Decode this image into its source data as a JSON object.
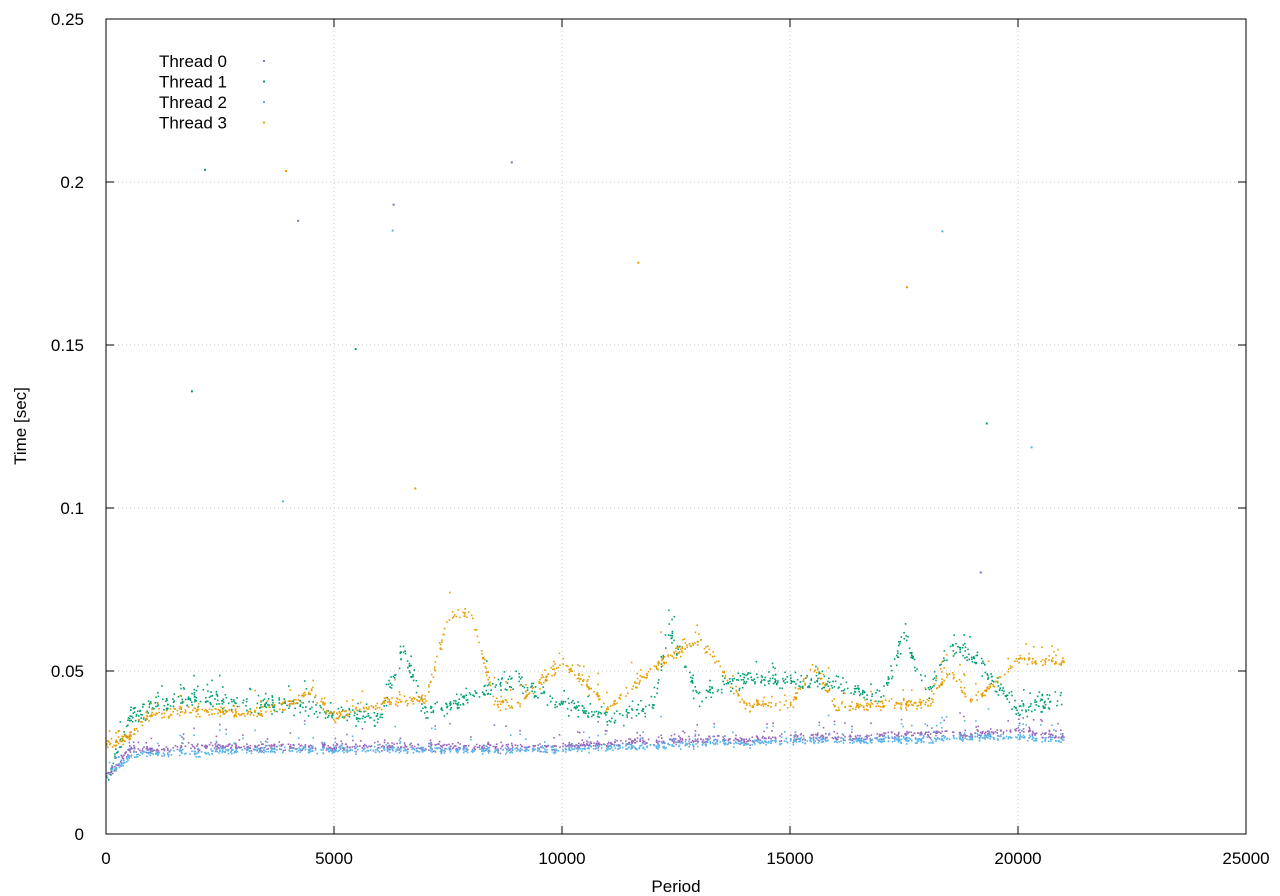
{
  "chart_data": {
    "type": "scatter",
    "title": "",
    "xlabel": "Period",
    "ylabel": "Time [sec]",
    "xlim": [
      0,
      25000
    ],
    "ylim": [
      0,
      0.25
    ],
    "x_ticks": [
      "0",
      "5000",
      "10000",
      "15000",
      "20000",
      "25000"
    ],
    "y_ticks": [
      "0",
      "0.05",
      "0.1",
      "0.15",
      "0.2",
      "0.25"
    ],
    "grid": true,
    "legend_position": "top-left",
    "series": [
      {
        "name": "Thread 0",
        "color": "#9467bd",
        "x": [
          0,
          500,
          1000,
          2000,
          3000,
          4000,
          5000,
          6000,
          7000,
          8000,
          9000,
          10000,
          11000,
          12000,
          13000,
          14000,
          15000,
          16000,
          17000,
          18000,
          19000,
          20000,
          21000
        ],
        "y": [
          0.018,
          0.026,
          0.026,
          0.027,
          0.027,
          0.027,
          0.027,
          0.027,
          0.027,
          0.027,
          0.027,
          0.027,
          0.028,
          0.029,
          0.029,
          0.029,
          0.03,
          0.03,
          0.03,
          0.031,
          0.031,
          0.032,
          0.03
        ]
      },
      {
        "name": "Thread 1",
        "color": "#009e73",
        "x": [
          0,
          500,
          1000,
          2000,
          3000,
          4000,
          5000,
          6000,
          6500,
          7000,
          8000,
          9000,
          10000,
          11000,
          12000,
          12300,
          13000,
          14000,
          15000,
          16000,
          17000,
          17500,
          18000,
          18500,
          19000,
          20000,
          21000
        ],
        "y": [
          0.018,
          0.035,
          0.04,
          0.042,
          0.04,
          0.04,
          0.037,
          0.036,
          0.057,
          0.036,
          0.043,
          0.047,
          0.04,
          0.036,
          0.04,
          0.063,
          0.042,
          0.048,
          0.047,
          0.046,
          0.042,
          0.061,
          0.043,
          0.058,
          0.055,
          0.038,
          0.042
        ]
      },
      {
        "name": "Thread 2",
        "color": "#56b4e9",
        "x": [
          0,
          500,
          1000,
          2000,
          3000,
          4000,
          5000,
          6000,
          7000,
          8000,
          9000,
          10000,
          11000,
          12000,
          13000,
          14000,
          15000,
          16000,
          17000,
          18000,
          19000,
          20000,
          21000
        ],
        "y": [
          0.018,
          0.024,
          0.025,
          0.025,
          0.026,
          0.026,
          0.026,
          0.026,
          0.026,
          0.026,
          0.026,
          0.026,
          0.027,
          0.027,
          0.028,
          0.028,
          0.029,
          0.029,
          0.029,
          0.029,
          0.03,
          0.03,
          0.029
        ]
      },
      {
        "name": "Thread 3",
        "color": "#e69f00",
        "x": [
          0,
          500,
          1000,
          2000,
          3000,
          4000,
          4500,
          5000,
          6000,
          7000,
          7500,
          8000,
          8500,
          9000,
          10000,
          11000,
          12000,
          12500,
          13000,
          14000,
          15000,
          15500,
          16000,
          17000,
          18000,
          18500,
          19000,
          20000,
          21000
        ],
        "y": [
          0.028,
          0.03,
          0.037,
          0.038,
          0.037,
          0.04,
          0.044,
          0.036,
          0.04,
          0.042,
          0.067,
          0.068,
          0.041,
          0.04,
          0.053,
          0.039,
          0.051,
          0.056,
          0.06,
          0.04,
          0.04,
          0.052,
          0.039,
          0.04,
          0.04,
          0.05,
          0.04,
          0.054,
          0.053
        ]
      }
    ]
  }
}
